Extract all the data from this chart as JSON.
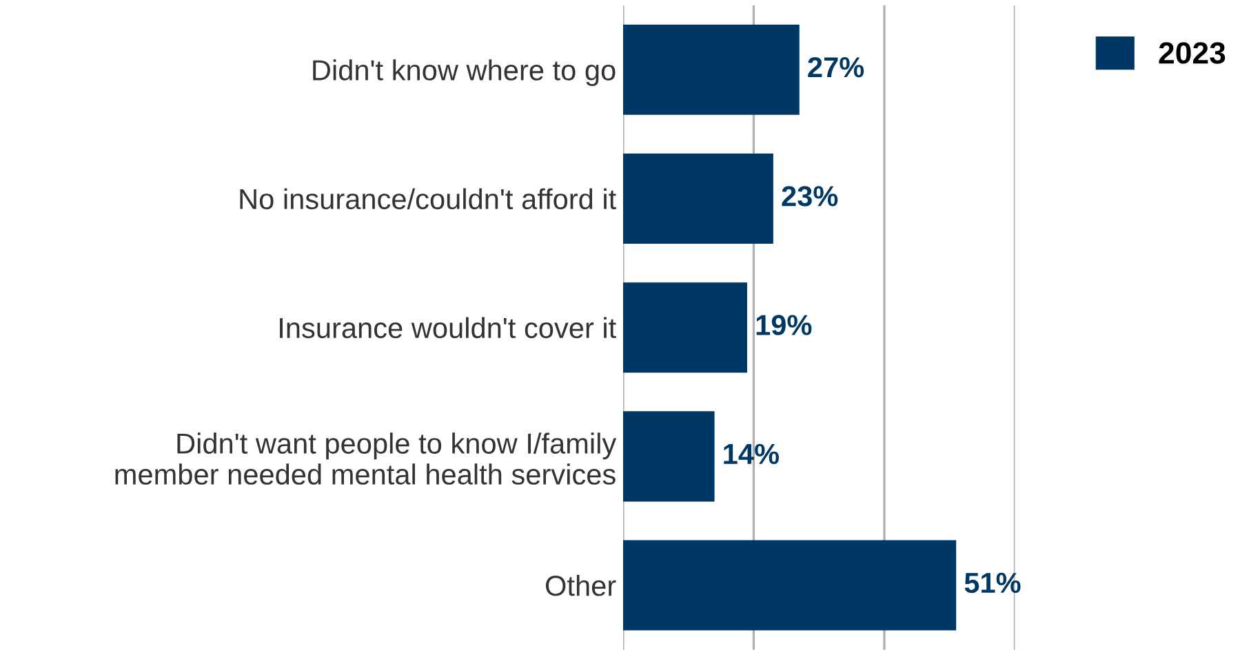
{
  "chart_data": {
    "type": "bar",
    "orientation": "horizontal",
    "categories": [
      "Didn't know where to go",
      "No insurance/couldn't afford it",
      "Insurance wouldn't cover it",
      "Didn't want people to know I/family\nmember needed mental health services",
      "Other"
    ],
    "series": [
      {
        "name": "2023",
        "color": "#003865",
        "values": [
          27,
          23,
          19,
          14,
          51
        ],
        "value_labels": [
          "27%",
          "23%",
          "19%",
          "14%",
          "51%"
        ]
      }
    ],
    "xlim": [
      0,
      60
    ],
    "xticks": [
      {
        "value": 0,
        "label": null
      },
      {
        "value": 20,
        "label": null
      },
      {
        "value": 40,
        "label": null
      },
      {
        "value": 60,
        "label": null
      }
    ],
    "tick_labels": "y",
    "grid": "x",
    "legend": "top right"
  }
}
